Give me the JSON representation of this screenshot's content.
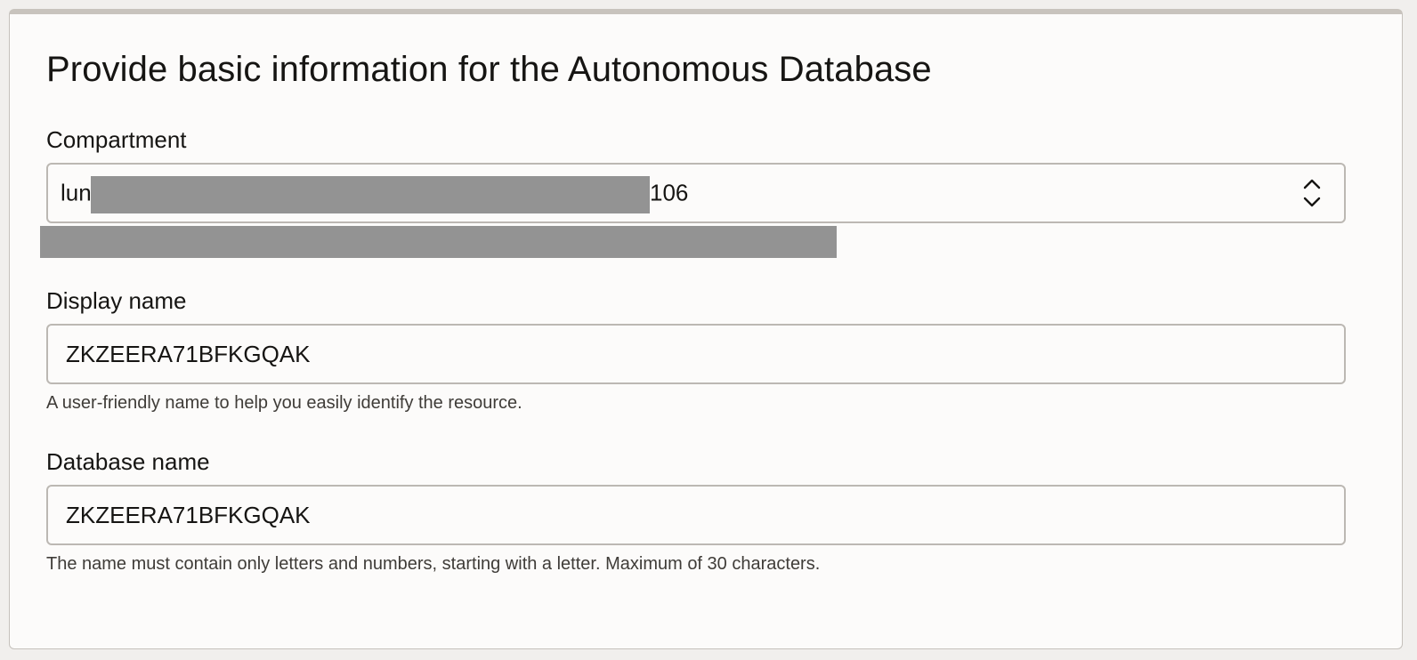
{
  "form": {
    "title": "Provide basic information for the Autonomous Database",
    "compartment": {
      "label": "Compartment",
      "value_prefix": "lun",
      "value_suffix": "106",
      "chevron_icon": "up-down-chevron-icon"
    },
    "display_name": {
      "label": "Display name",
      "value": "ZKZEERA71BFKGQAK",
      "help": "A user-friendly name to help you easily identify the resource."
    },
    "database_name": {
      "label": "Database name",
      "value": "ZKZEERA71BFKGQAK",
      "help": "The name must contain only letters and numbers, starting with a letter. Maximum of 30 characters."
    }
  }
}
